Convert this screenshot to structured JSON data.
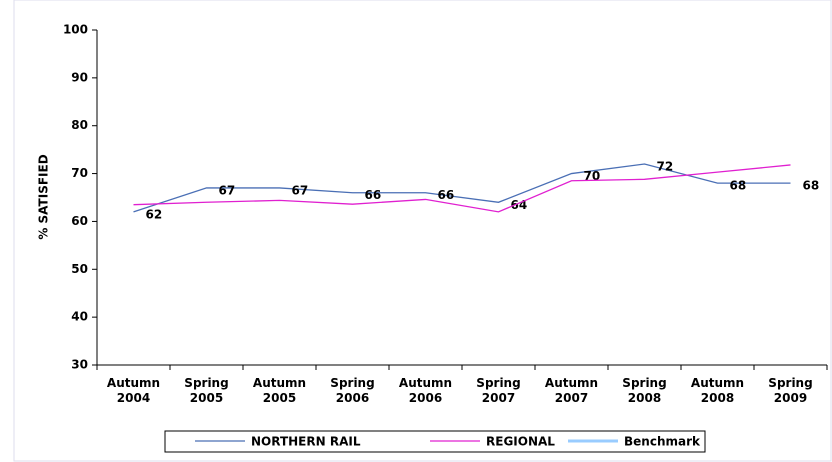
{
  "chart_data": {
    "type": "line",
    "ylabel": "% SATISFIED",
    "categories": [
      "Autumn 2004",
      "Spring 2005",
      "Autumn 2005",
      "Spring 2006",
      "Autumn 2006",
      "Spring 2007",
      "Autumn 2007",
      "Spring 2008",
      "Autumn 2008",
      "Spring 2009"
    ],
    "series": [
      {
        "name": "NORTHERN RAIL",
        "color": "#4a6fb5",
        "values": [
          62,
          67,
          67,
          66,
          66,
          64,
          70,
          72,
          68,
          68
        ],
        "data_labels": true
      },
      {
        "name": "REGIONAL",
        "color": "#e020d0",
        "values": [
          63.5,
          64,
          64.4,
          63.6,
          64.6,
          62,
          68.5,
          68.8,
          70.3,
          71.8
        ]
      },
      {
        "name": "Benchmark",
        "color": "#99ccff",
        "values": [
          null,
          null,
          null,
          null,
          null,
          null,
          null,
          null,
          null,
          null
        ]
      }
    ],
    "ylim": [
      30,
      100
    ],
    "yticks": [
      30,
      40,
      50,
      60,
      70,
      80,
      90,
      100
    ],
    "legend": "bottom"
  }
}
